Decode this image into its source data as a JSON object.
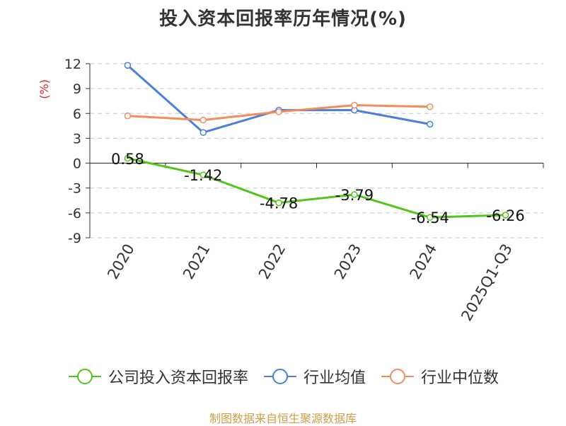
{
  "chart_data": {
    "type": "line",
    "title": "投入资本回报率历年情况(%)",
    "ylabel": "(%)",
    "categories": [
      "2020",
      "2021",
      "2022",
      "2023",
      "2024",
      "2025Q1-Q3"
    ],
    "ylim": [
      -9,
      12
    ],
    "yticks": [
      12,
      9,
      6,
      3,
      0,
      -3,
      -6,
      -9
    ],
    "grid": true,
    "legend_position": "bottom",
    "series": [
      {
        "name": "公司投入资本回报率",
        "color": "#52c41a",
        "values": [
          0.58,
          -1.42,
          -4.78,
          -3.79,
          -6.54,
          -6.26
        ],
        "labels": [
          "0.58",
          "-1.42",
          "-4.78",
          "-3.79",
          "-6.54",
          "-6.26"
        ]
      },
      {
        "name": "行业均值",
        "color": "#4a7fdc",
        "values": [
          11.8,
          3.7,
          6.4,
          6.4,
          4.7,
          null
        ]
      },
      {
        "name": "行业中位数",
        "color": "#f28c5a",
        "values": [
          5.7,
          5.2,
          6.2,
          7.0,
          6.8,
          null
        ]
      }
    ]
  },
  "source": "制图数据来自恒生聚源数据库"
}
